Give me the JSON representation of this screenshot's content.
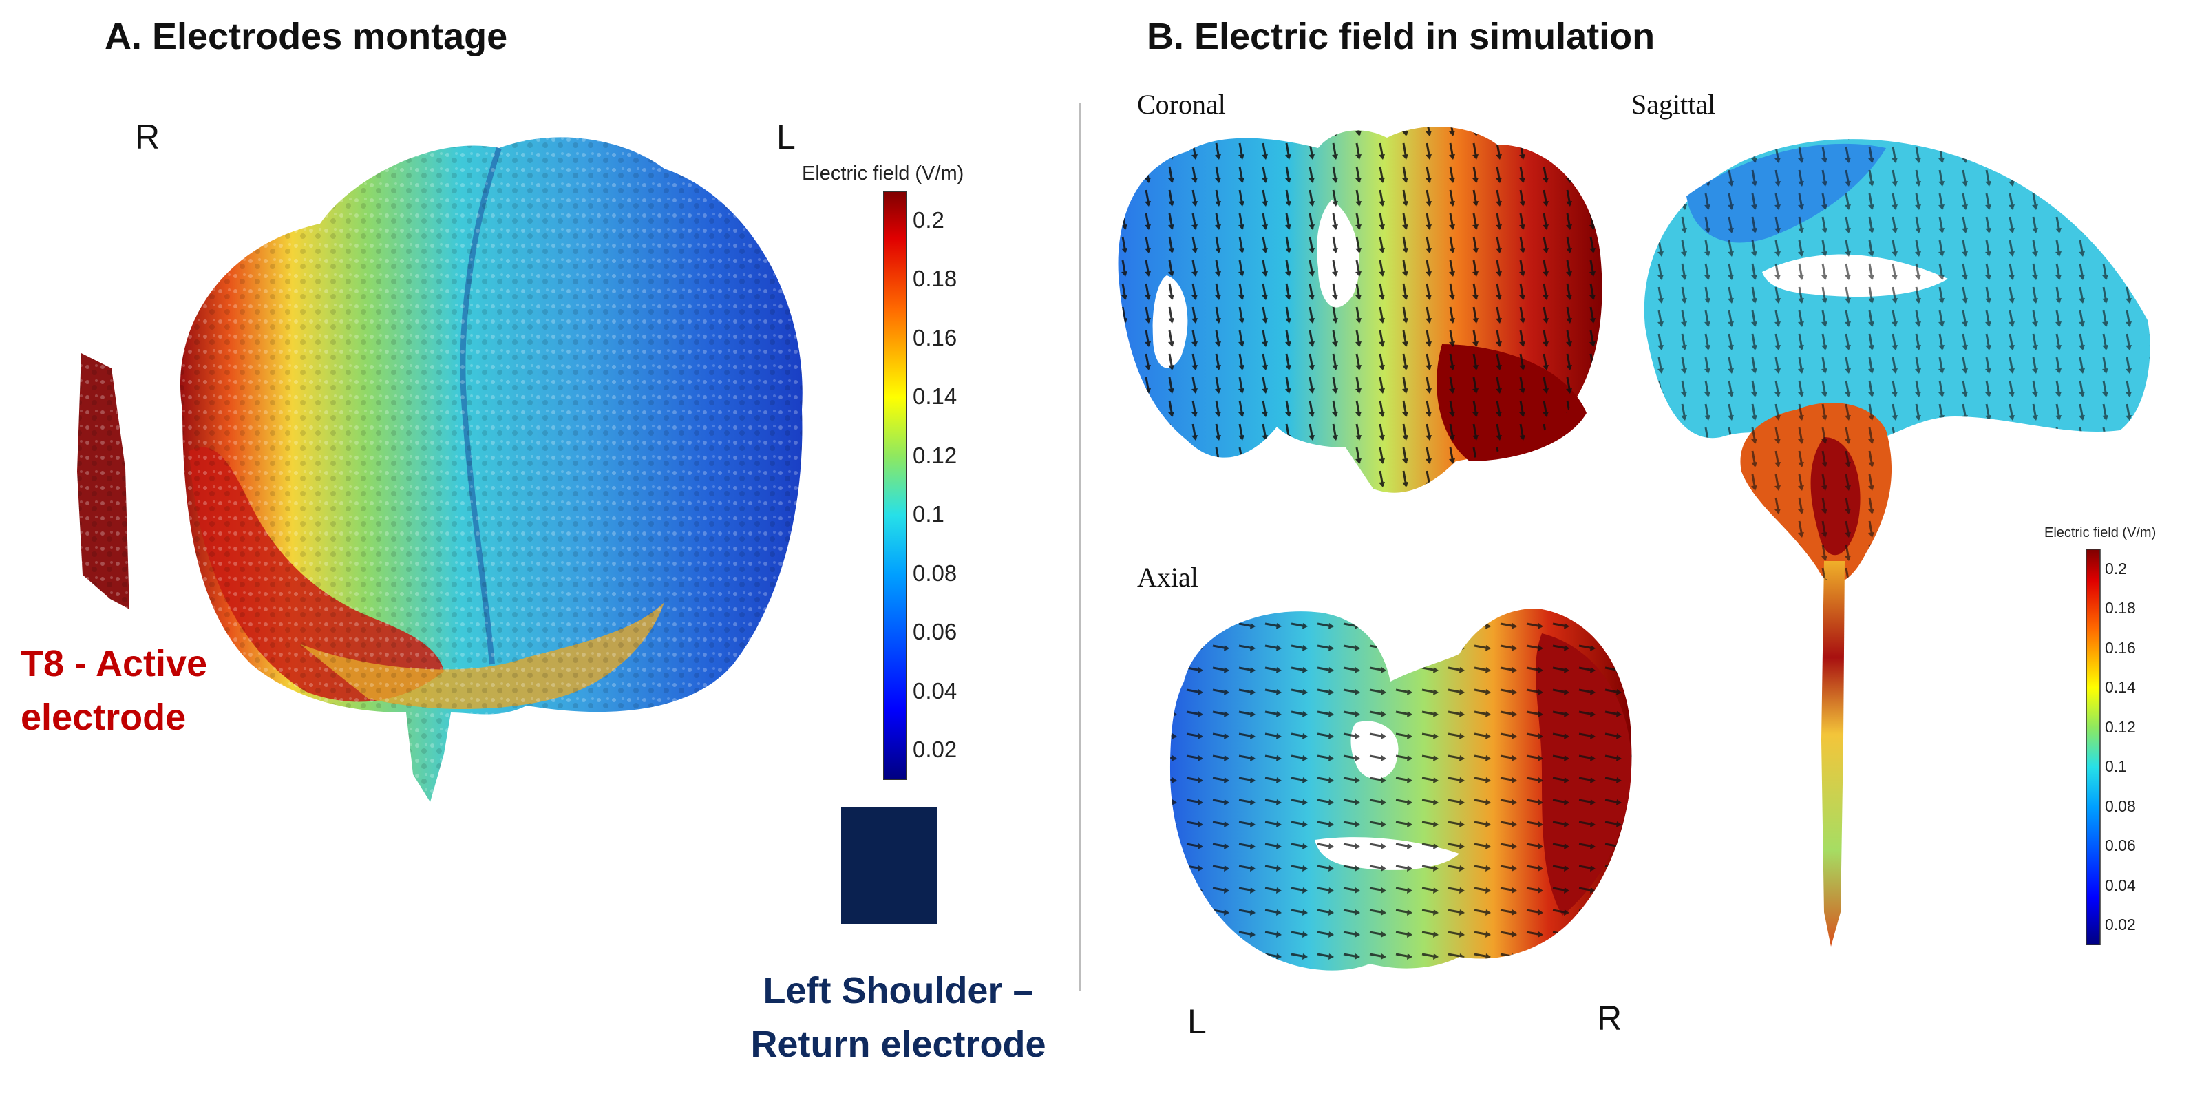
{
  "panel_a": {
    "title": "A. Electrodes montage",
    "orientation_right": "R",
    "orientation_left": "L",
    "active_electrode": {
      "line1": "T8 - Active",
      "line2": "electrode",
      "color": "#c00000",
      "swatch": "#8b1414"
    },
    "return_electrode": {
      "line1": "Left Shoulder –",
      "line2": "Return electrode",
      "color": "#0f2a5e",
      "swatch": "#0a2150"
    }
  },
  "panel_b": {
    "title": "B. Electric field in simulation",
    "views": {
      "coronal": "Coronal",
      "sagittal": "Sagittal",
      "axial": "Axial"
    },
    "orientation_left": "L",
    "orientation_right": "R"
  },
  "colorbar_main": {
    "title": "Electric field (V/m)",
    "range": [
      0.01,
      0.21
    ],
    "ticks": [
      "0.2",
      "0.18",
      "0.16",
      "0.14",
      "0.12",
      "0.1",
      "0.08",
      "0.06",
      "0.04",
      "0.02"
    ]
  },
  "colorbar_small": {
    "title": "Electric field (V/m)",
    "range": [
      0.01,
      0.21
    ],
    "ticks": [
      "0.2",
      "0.18",
      "0.16",
      "0.14",
      "0.12",
      "0.1",
      "0.08",
      "0.06",
      "0.04",
      "0.02"
    ]
  },
  "colors": {
    "jet_dark_red": "#800000",
    "jet_red": "#e0220a",
    "jet_orange": "#ff8a00",
    "jet_yellow": "#f2e21c",
    "jet_green": "#8ed65a",
    "jet_cyan": "#33d6e6",
    "jet_blue": "#1c6bff",
    "jet_dark_blue": "#00007f"
  }
}
